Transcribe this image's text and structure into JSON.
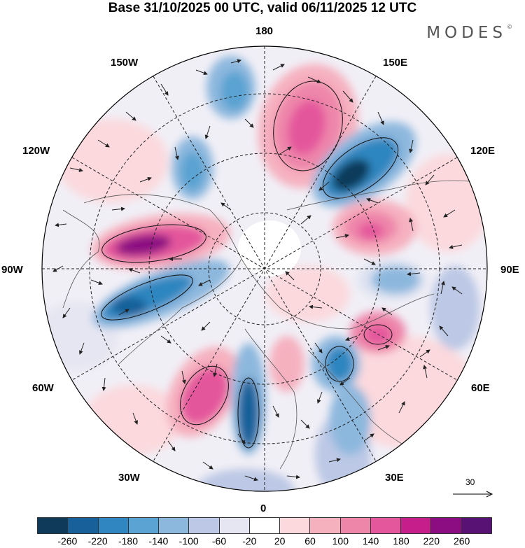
{
  "title": "Base 31/10/2025 00 UTC, valid 06/11/2025 12 UTC",
  "brand": "MODES",
  "brand_mark": "©",
  "map": {
    "projection": "north-polar-stereographic",
    "longitude_labels": {
      "top": "180",
      "top_left": "150W",
      "top_right": "150E",
      "upper_left": "120W",
      "upper_right": "120E",
      "left": "90W",
      "right": "90E",
      "lower_left": "60W",
      "lower_right": "60E",
      "bottom_left": "30W",
      "bottom_right": "30E",
      "bottom": "0"
    },
    "vector_reference": "30"
  },
  "colorbar": {
    "colors": [
      "#103a5a",
      "#17609a",
      "#2f86c0",
      "#5aa3d2",
      "#8db8de",
      "#bcc8e5",
      "#e6e6f2",
      "#ffffff",
      "#fbd9dd",
      "#f6b1bf",
      "#ee86aa",
      "#e4579c",
      "#c61f8b",
      "#8c0c82",
      "#581273"
    ],
    "labels": [
      "-260",
      "-220",
      "-180",
      "-140",
      "-100",
      "-60",
      "-20",
      "20",
      "60",
      "100",
      "140",
      "180",
      "220",
      "260"
    ]
  }
}
